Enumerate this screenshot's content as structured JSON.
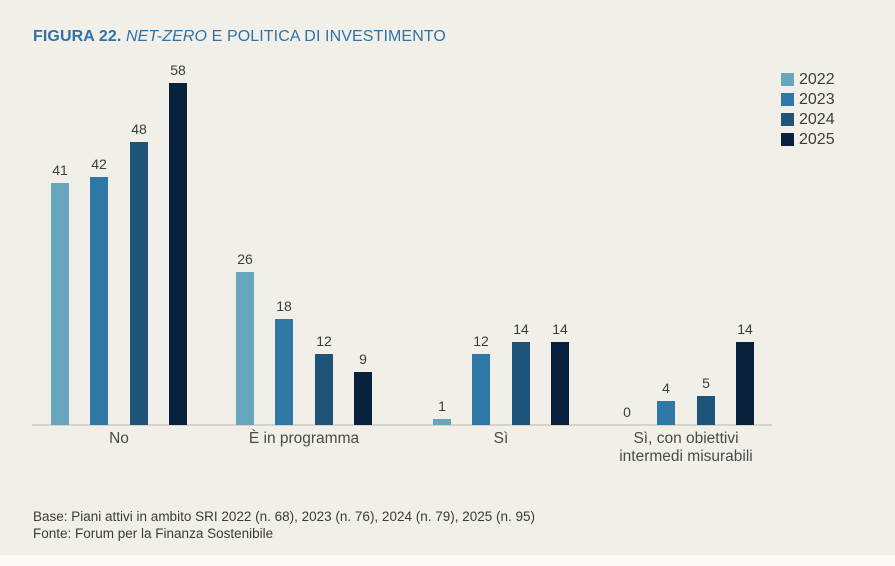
{
  "figure": {
    "label": "FIGURA 22.",
    "title_italic": "NET-ZERO",
    "title_rest": " E POLITICA DI INVESTIMENTO"
  },
  "chart_data": {
    "type": "bar",
    "title": "FIGURA 22. NET-ZERO E POLITICA DI INVESTIMENTO",
    "categories": [
      "No",
      "È in programma",
      "Sì",
      "Sì, con obiettivi\nintermedi misurabili"
    ],
    "series": [
      {
        "name": "2022",
        "color": "#68a6bd",
        "values": [
          41,
          26,
          1,
          0
        ]
      },
      {
        "name": "2023",
        "color": "#2f78a6",
        "values": [
          42,
          18,
          12,
          4
        ]
      },
      {
        "name": "2024",
        "color": "#1e5478",
        "values": [
          48,
          12,
          14,
          5
        ]
      },
      {
        "name": "2025",
        "color": "#08223e",
        "values": [
          58,
          9,
          14,
          14
        ]
      }
    ],
    "xlabel": "",
    "ylabel": "",
    "ylim": [
      0,
      58
    ],
    "grid": false,
    "value_labels": true,
    "legend_position": "top-right"
  },
  "footer": {
    "base": "Base: Piani attivi in ambito SRI 2022 (n. 68), 2023 (n. 76), 2024 (n. 79), 2025 (n. 95)",
    "fonte": "Fonte: Forum per la Finanza Sostenibile"
  },
  "colors": {
    "background": "#f2efe8",
    "title": "#2d73a8",
    "axis": "#d6d3cb",
    "text": "#3c3c3c"
  }
}
